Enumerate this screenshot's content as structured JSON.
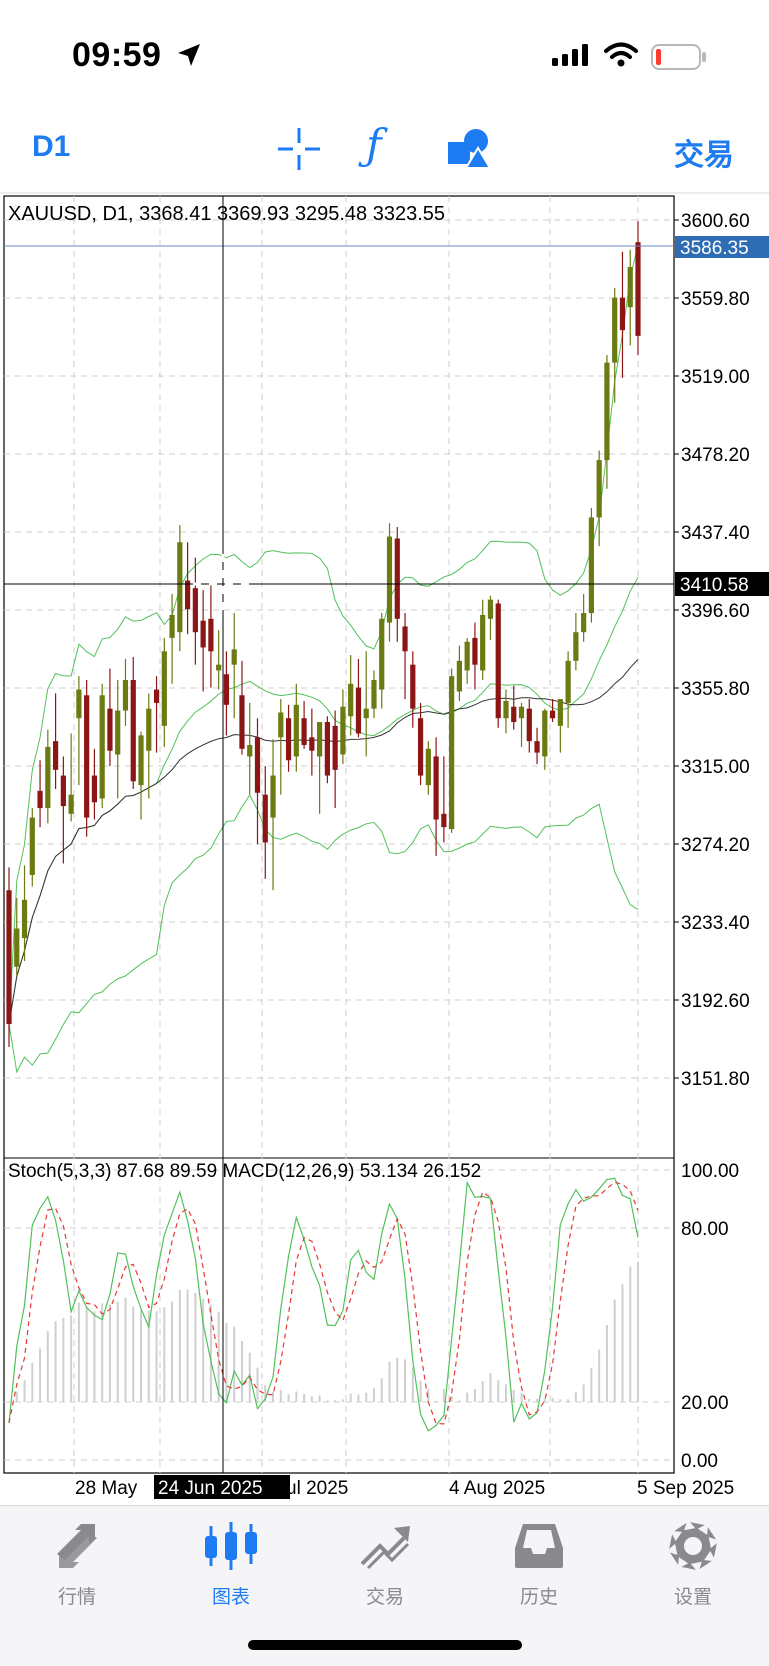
{
  "status_bar": {
    "time": "09:59"
  },
  "toolbar": {
    "timeframe": "D1",
    "trade_label": "交易"
  },
  "chart": {
    "info": "XAUUSD, D1, 3368.41 3369.93 3295.48 3323.55",
    "price_axis": [
      "3600.60",
      "3559.80",
      "3519.00",
      "3478.20",
      "3437.40",
      "3396.60",
      "3355.80",
      "3315.00",
      "3274.20",
      "3233.40",
      "3192.60",
      "3151.80"
    ],
    "current_price": "3586.35",
    "crosshair_price": "3410.58",
    "indicator_info": "Stoch(5,3,3) 87.68 89.59 MACD(12,26,9) 53.134 26.152",
    "indicator_axis": [
      "100.00",
      "80.00",
      "20.00",
      "0.00"
    ],
    "date_labels": {
      "d1": "28 May",
      "d2": "ul 2025",
      "d3": "4 Aug 2025",
      "d4": "5 Sep 2025"
    },
    "crosshair_date": "24 Jun 2025"
  },
  "chart_data": {
    "type": "candlestick",
    "symbol": "XAUUSD",
    "timeframe": "D1",
    "price_range": [
      3110,
      3620
    ],
    "ohlc": [
      [
        3250,
        3262,
        3168,
        3180
      ],
      [
        3210,
        3246,
        3205,
        3230
      ],
      [
        3225,
        3263,
        3213,
        3245
      ],
      [
        3258,
        3293,
        3252,
        3288
      ],
      [
        3302,
        3318,
        3283,
        3293
      ],
      [
        3293,
        3334,
        3285,
        3325
      ],
      [
        3328,
        3353,
        3303,
        3313
      ],
      [
        3310,
        3320,
        3264,
        3294
      ],
      [
        3290,
        3332,
        3286,
        3300
      ],
      [
        3340,
        3362,
        3305,
        3355
      ],
      [
        3352,
        3360,
        3278,
        3288
      ],
      [
        3310,
        3324,
        3287,
        3296
      ],
      [
        3298,
        3358,
        3293,
        3352
      ],
      [
        3345,
        3366,
        3315,
        3323
      ],
      [
        3321,
        3360,
        3298,
        3344
      ],
      [
        3344,
        3371,
        3336,
        3360
      ],
      [
        3360,
        3372,
        3303,
        3307
      ],
      [
        3305,
        3333,
        3287,
        3331
      ],
      [
        3323,
        3353,
        3298,
        3345
      ],
      [
        3355,
        3362,
        3322,
        3348
      ],
      [
        3336,
        3382,
        3325,
        3375
      ],
      [
        3382,
        3405,
        3358,
        3394
      ],
      [
        3385,
        3441,
        3375,
        3432
      ],
      [
        3412,
        3432,
        3384,
        3397
      ],
      [
        3408,
        3424,
        3368,
        3385
      ],
      [
        3391,
        3407,
        3354,
        3377
      ],
      [
        3392,
        3410,
        3356,
        3375
      ],
      [
        3365,
        3386,
        3355,
        3368
      ],
      [
        3363,
        3375,
        3331,
        3347
      ],
      [
        3368,
        3395,
        3340,
        3376
      ],
      [
        3352,
        3370,
        3321,
        3324
      ],
      [
        3320,
        3348,
        3300,
        3326
      ],
      [
        3330,
        3340,
        3274,
        3301
      ],
      [
        3300,
        3315,
        3256,
        3275
      ],
      [
        3288,
        3329,
        3250,
        3310
      ],
      [
        3330,
        3350,
        3300,
        3343
      ],
      [
        3340,
        3347,
        3312,
        3318
      ],
      [
        3320,
        3358,
        3312,
        3347
      ],
      [
        3340,
        3349,
        3324,
        3326
      ],
      [
        3330,
        3345,
        3310,
        3323
      ],
      [
        3320,
        3336,
        3290,
        3338
      ],
      [
        3338,
        3341,
        3306,
        3310
      ],
      [
        3336,
        3344,
        3293,
        3313
      ],
      [
        3321,
        3355,
        3316,
        3346
      ],
      [
        3341,
        3373,
        3331,
        3358
      ],
      [
        3356,
        3371,
        3330,
        3332
      ],
      [
        3340,
        3375,
        3320,
        3345
      ],
      [
        3345,
        3365,
        3340,
        3360
      ],
      [
        3355,
        3395,
        3345,
        3392
      ],
      [
        3390,
        3442,
        3380,
        3435
      ],
      [
        3434,
        3440,
        3380,
        3392
      ],
      [
        3388,
        3395,
        3350,
        3375
      ],
      [
        3368,
        3375,
        3335,
        3345
      ],
      [
        3340,
        3348,
        3305,
        3310
      ],
      [
        3305,
        3328,
        3300,
        3324
      ],
      [
        3320,
        3330,
        3268,
        3287
      ],
      [
        3290,
        3320,
        3275,
        3283
      ],
      [
        3282,
        3366,
        3280,
        3362
      ],
      [
        3354,
        3378,
        3349,
        3370
      ],
      [
        3365,
        3382,
        3358,
        3380
      ],
      [
        3382,
        3390,
        3355,
        3368
      ],
      [
        3365,
        3402,
        3360,
        3394
      ],
      [
        3392,
        3404,
        3381,
        3402
      ],
      [
        3400,
        3402,
        3335,
        3340
      ],
      [
        3340,
        3355,
        3332,
        3349
      ],
      [
        3346,
        3357,
        3334,
        3338
      ],
      [
        3340,
        3348,
        3325,
        3346
      ],
      [
        3345,
        3350,
        3322,
        3328
      ],
      [
        3328,
        3335,
        3316,
        3322
      ],
      [
        3320,
        3345,
        3313,
        3344
      ],
      [
        3344,
        3350,
        3338,
        3340
      ],
      [
        3336,
        3347,
        3322,
        3350
      ],
      [
        3348,
        3375,
        3335,
        3370
      ],
      [
        3370,
        3395,
        3365,
        3385
      ],
      [
        3385,
        3405,
        3380,
        3395
      ],
      [
        3395,
        3450,
        3390,
        3445
      ],
      [
        3445,
        3480,
        3430,
        3475
      ],
      [
        3475,
        3530,
        3460,
        3526
      ],
      [
        3526,
        3565,
        3505,
        3560
      ],
      [
        3560,
        3584,
        3518,
        3543
      ],
      [
        3555,
        3585,
        3535,
        3576
      ],
      [
        3589,
        3600,
        3530,
        3540
      ]
    ],
    "indicators": [
      "Stoch(5,3,3)",
      "MACD(12,26,9)"
    ],
    "stoch_main": 87.68,
    "stoch_signal": 89.59,
    "macd": 53.134,
    "macd_signal": 26.152,
    "stoch_range": [
      0,
      100
    ]
  },
  "tabs": [
    {
      "label": "行情",
      "icon": "quotes-arrows-icon"
    },
    {
      "label": "图表",
      "icon": "candlestick-chart-icon"
    },
    {
      "label": "交易",
      "icon": "trade-trend-icon"
    },
    {
      "label": "历史",
      "icon": "history-inbox-icon"
    },
    {
      "label": "设置",
      "icon": "settings-gear-icon"
    }
  ],
  "colors": {
    "accent": "#1e7cf2",
    "bull": "#6b7a11",
    "bear": "#8c1515",
    "bollinger": "#52c15a",
    "stoch_signal": "#e53935",
    "price_tag": "#2e6db4"
  }
}
